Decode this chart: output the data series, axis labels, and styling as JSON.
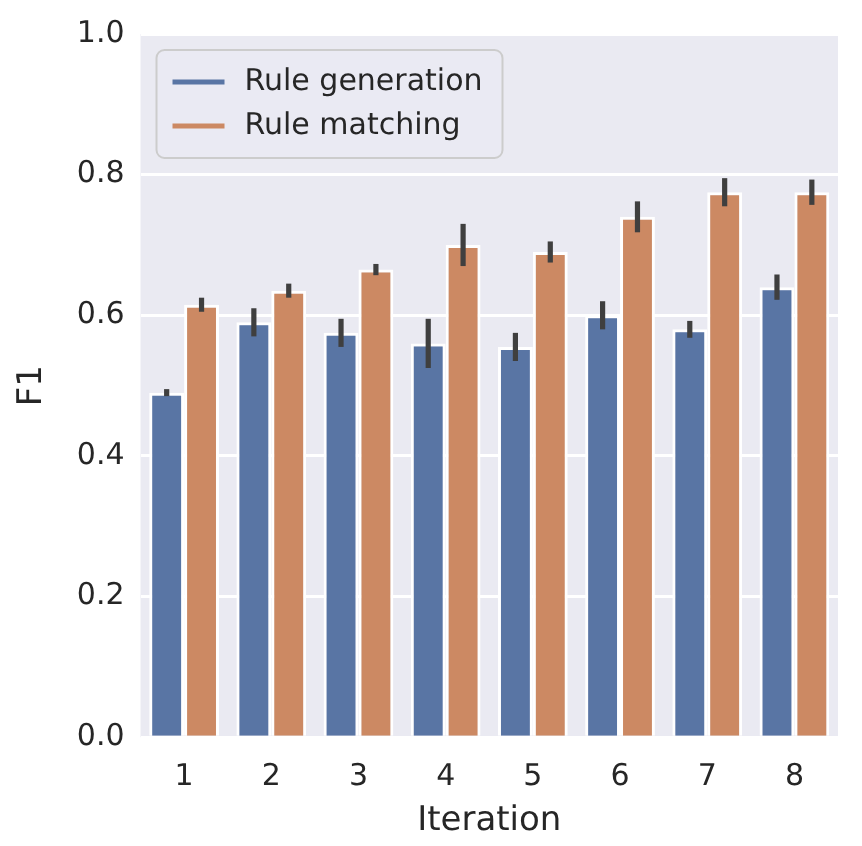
{
  "chart_data": {
    "type": "bar",
    "xlabel": "Iteration",
    "ylabel": "F1",
    "categories": [
      "1",
      "2",
      "3",
      "4",
      "5",
      "6",
      "7",
      "8"
    ],
    "series": [
      {
        "name": "Rule generation",
        "color": "#5975a4",
        "values": [
          0.49,
          0.59,
          0.575,
          0.56,
          0.555,
          0.6,
          0.58,
          0.64
        ],
        "errors": [
          0.005,
          0.02,
          0.02,
          0.035,
          0.02,
          0.02,
          0.012,
          0.018
        ]
      },
      {
        "name": "Rule matching",
        "color": "#cc8963",
        "values": [
          0.615,
          0.635,
          0.665,
          0.7,
          0.69,
          0.74,
          0.775,
          0.775
        ],
        "errors": [
          0.01,
          0.01,
          0.008,
          0.03,
          0.015,
          0.022,
          0.02,
          0.018
        ]
      }
    ],
    "ylim": [
      0,
      1
    ],
    "yticks": [
      {
        "value": 0,
        "label": "0.0"
      },
      0.2,
      0.4,
      0.6,
      0.8,
      {
        "value": 1,
        "label": "1.0"
      }
    ],
    "grid": "y",
    "legend": "top left"
  }
}
